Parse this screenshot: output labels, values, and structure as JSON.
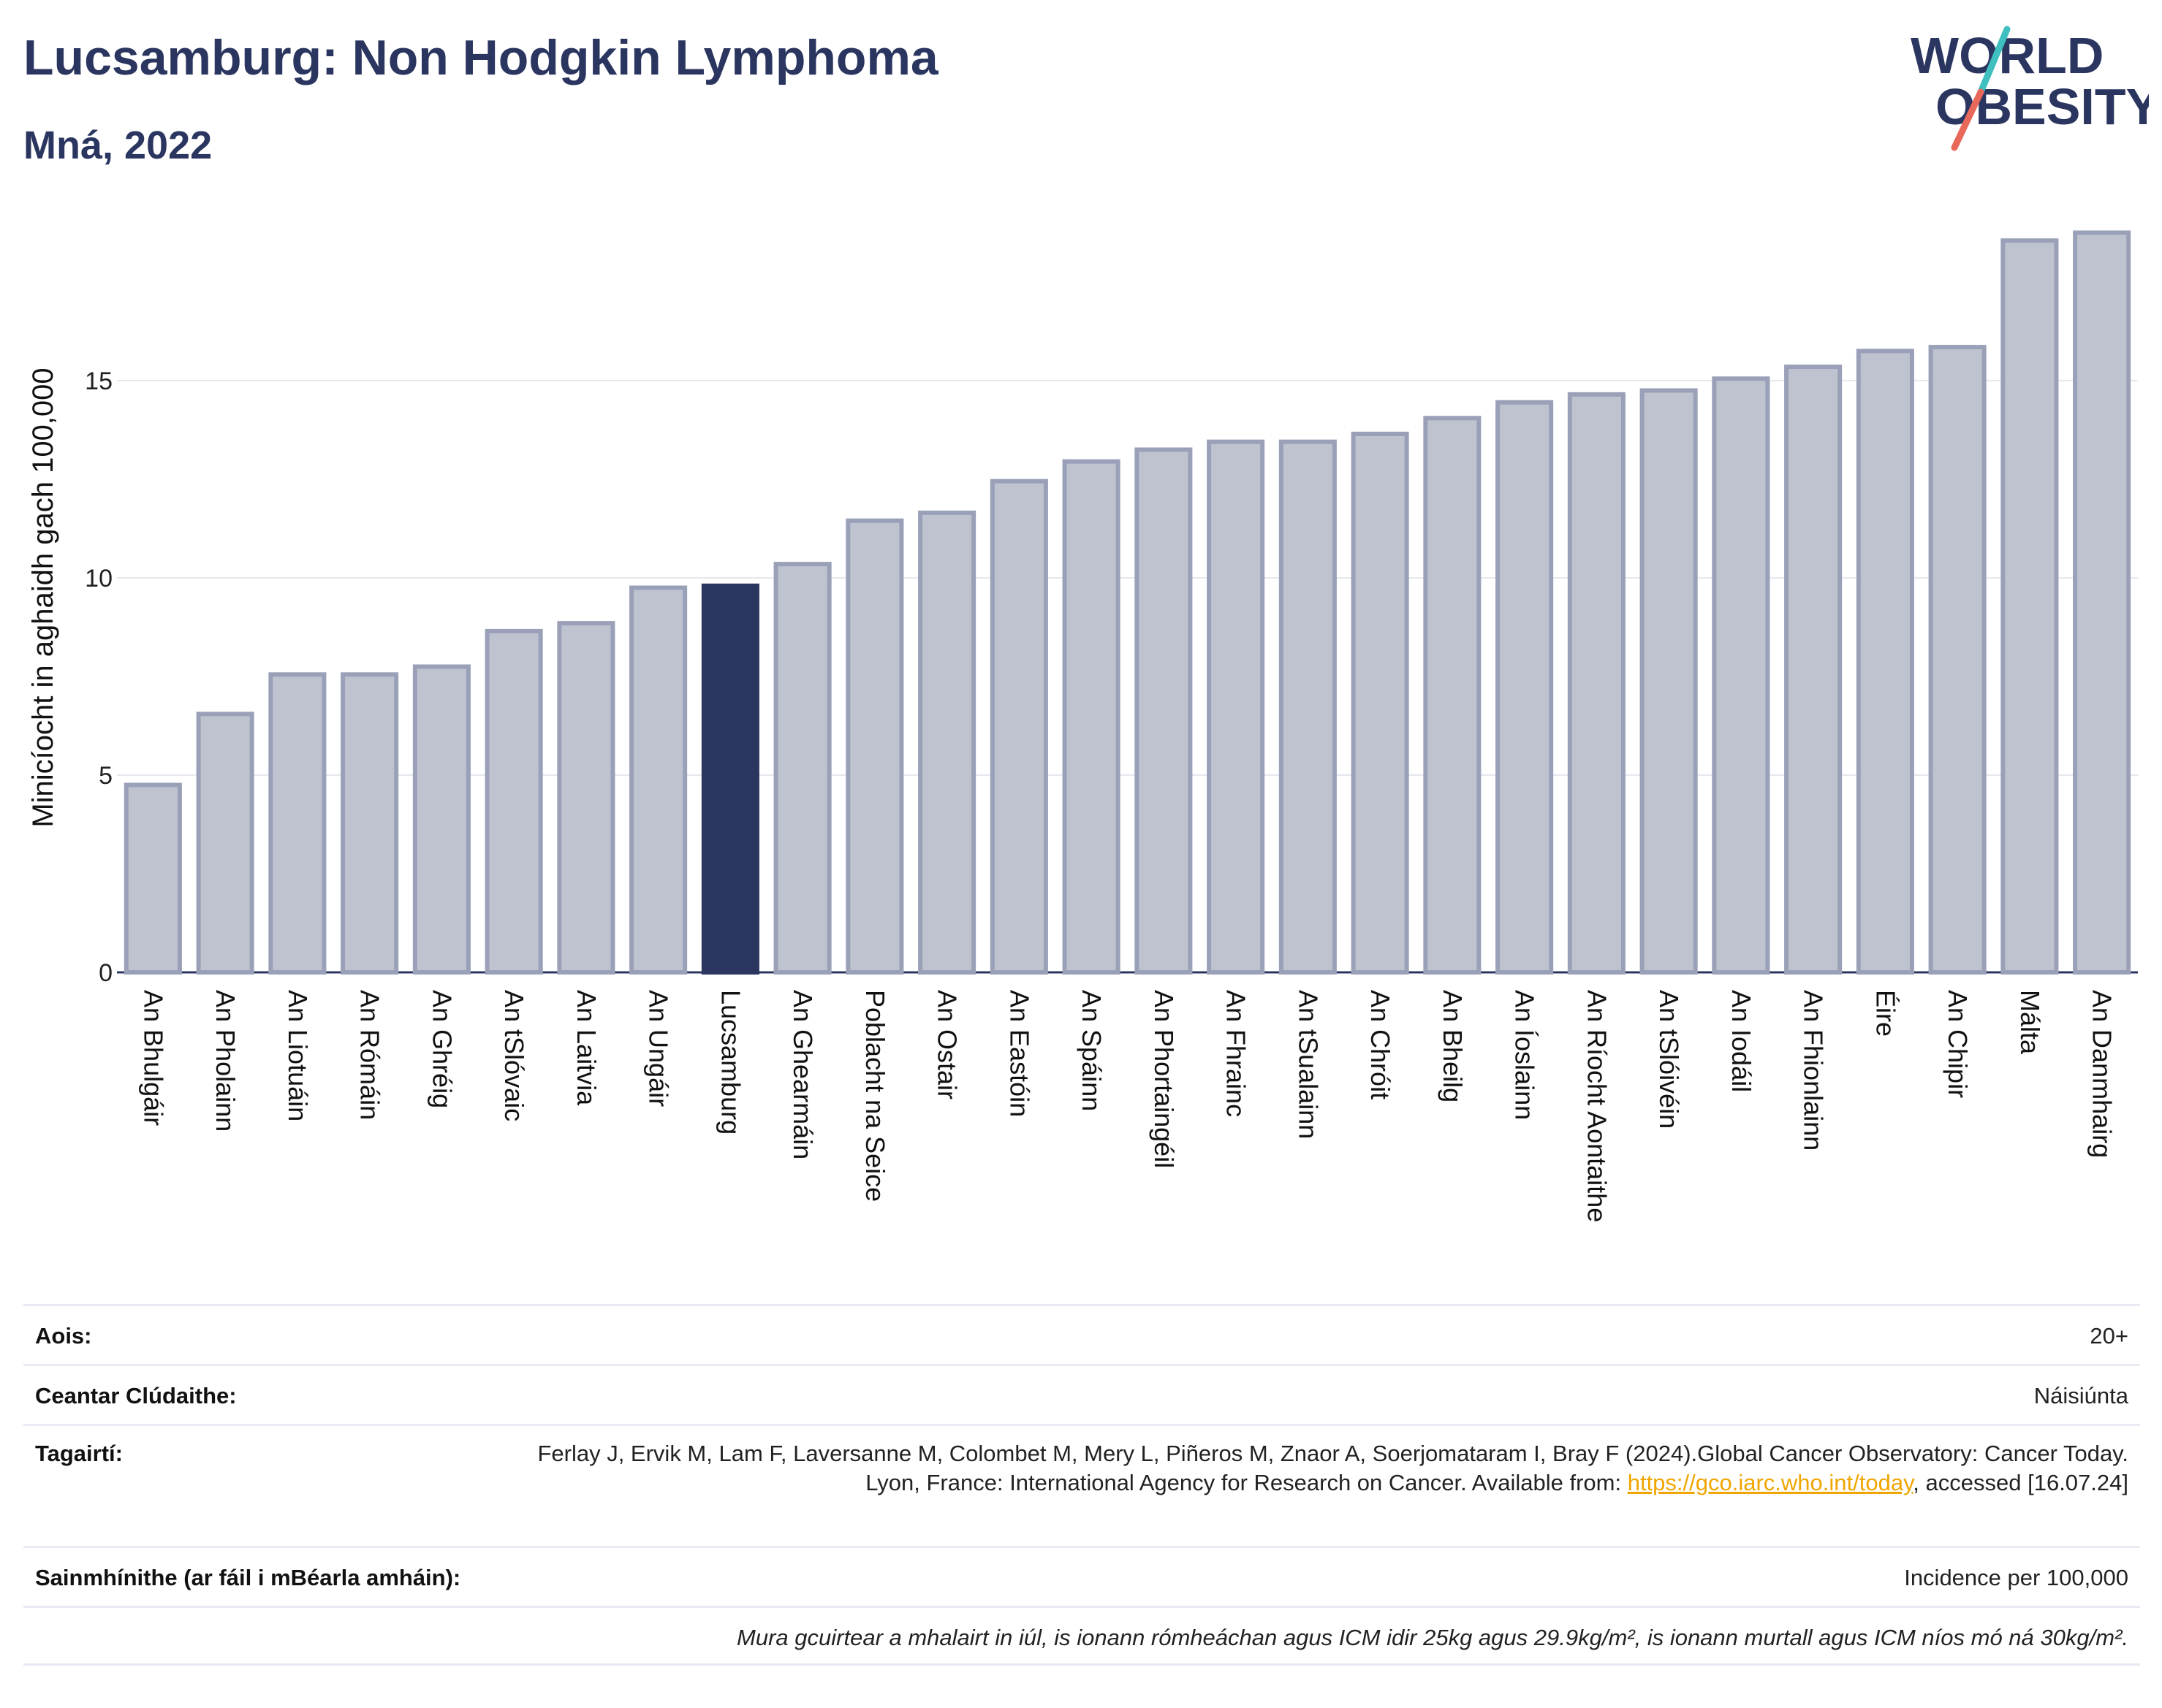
{
  "header": {
    "title": "Lucsamburg: Non Hodgkin Lymphoma",
    "subtitle": "Mná, 2022"
  },
  "logo": {
    "line1": "WORLD",
    "line2": "OBESITY",
    "colors": {
      "text": "#2b3660",
      "slash_top": "#3fbfbf",
      "slash_bottom": "#e8685a"
    }
  },
  "colors": {
    "bar_fill": "#bfc3d0",
    "bar_stroke": "#9aa0b8",
    "highlight_fill": "#2b3660",
    "grid": "#e6e8ee",
    "axis": "#2b3660"
  },
  "chart_data": {
    "type": "bar",
    "title": "Lucsamburg: Non Hodgkin Lymphoma",
    "subtitle": "Mná, 2022",
    "ylabel": "Minicíocht in aghaidh gach 100,000",
    "xlabel": "",
    "ylim": [
      0,
      19
    ],
    "yticks": [
      0,
      5,
      10,
      15
    ],
    "grid": true,
    "highlight": "Lucsamburg",
    "categories": [
      "An Bhulgáir",
      "An Pholainn",
      "An Liotuáin",
      "An Rómáin",
      "An Ghréig",
      "An tSlóvaic",
      "An Laitvia",
      "An Ungáir",
      "Lucsamburg",
      "An Ghearmáin",
      "Poblacht na Seice",
      "An Ostair",
      "An Eastóin",
      "An Spáinn",
      "An Phortaingéil",
      "An Fhrainc",
      "An tSualainn",
      "An Chróit",
      "An Bheilg",
      "An Íoslainn",
      "An Ríocht Aontaithe",
      "An tSlóivéin",
      "An Iodáil",
      "An Fhionlainn",
      "Éire",
      "An Chipir",
      "Málta",
      "An Danmhairg"
    ],
    "values": [
      4.75,
      6.55,
      7.55,
      7.55,
      7.75,
      8.65,
      8.85,
      9.75,
      9.8,
      10.35,
      11.45,
      11.65,
      12.45,
      12.95,
      13.25,
      13.45,
      13.45,
      13.65,
      14.05,
      14.45,
      14.65,
      14.75,
      15.05,
      15.35,
      15.75,
      15.85,
      18.55,
      18.75
    ]
  },
  "info": {
    "age_label": "Aois:",
    "age_value": "20+",
    "coverage_label": "Ceantar Clúdaithe:",
    "coverage_value": "Náisiúnta",
    "refs_label": "Tagairtí:",
    "refs_text": "Ferlay J, Ervik M, Lam F, Laversanne M, Colombet M, Mery L, Piñeros M, Znaor A, Soerjomataram I, Bray F (2024).Global Cancer Observatory: Cancer Today. Lyon, France: International Agency for Research on Cancer. Available from: ",
    "refs_link": "https://gco.iarc.who.int/today",
    "refs_tail": ", accessed [16.07.24]",
    "defs_label": "Sainmhínithe (ar fáil i mBéarla amháin):",
    "defs_value": "Incidence per 100,000",
    "footnote": "Mura gcuirtear a mhalairt in iúl, is ionann rómheáchan agus ICM idir 25kg agus 29.9kg/m², is ionann murtall agus ICM níos mó ná 30kg/m²."
  }
}
